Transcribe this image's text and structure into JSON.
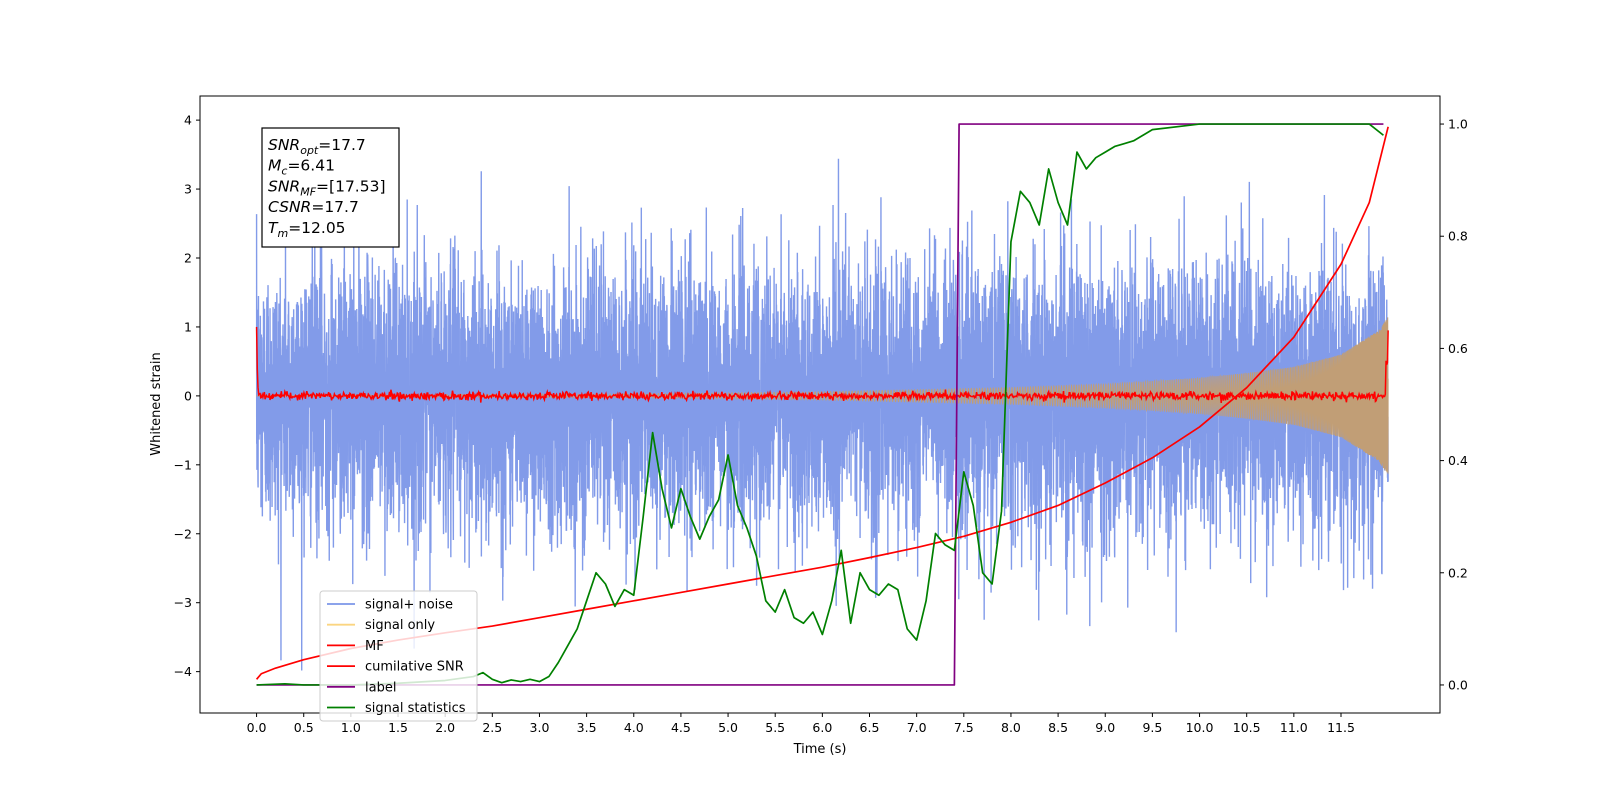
{
  "chart_data": {
    "type": "line",
    "xlabel": "Time (s)",
    "ylabel": "Whitened strain",
    "xlim": [
      -0.6,
      12.55
    ],
    "ylim_left": [
      -4.6,
      4.35
    ],
    "ylim_right": [
      -0.05,
      1.05
    ],
    "x_ticks": [
      "0.0",
      "0.5",
      "1.0",
      "1.5",
      "2.0",
      "2.5",
      "3.0",
      "3.5",
      "4.0",
      "4.5",
      "5.0",
      "5.5",
      "6.0",
      "6.5",
      "7.0",
      "7.5",
      "8.0",
      "8.5",
      "9.0",
      "9.5",
      "10.0",
      "10.5",
      "11.0",
      "11.5"
    ],
    "y_ticks_left": [
      "−4",
      "−3",
      "−2",
      "−1",
      "0",
      "1",
      "2",
      "3",
      "4"
    ],
    "y_ticks_right": [
      "0.0",
      "0.2",
      "0.4",
      "0.6",
      "0.8",
      "1.0"
    ],
    "annotation": [
      {
        "base": "SNR",
        "sub": "opt",
        "value": "=17.7"
      },
      {
        "base": "M",
        "sub": "c",
        "value": "=6.41"
      },
      {
        "base": "SNR",
        "sub": "MF",
        "value": "=[17.53]"
      },
      {
        "base": "CSNR",
        "sub": "",
        "value": "=17.7"
      },
      {
        "base": "T",
        "sub": "m",
        "value": "=12.05"
      }
    ],
    "legend": {
      "placement": "lower-left",
      "entries": [
        {
          "label": "signal+ noise",
          "color": "#7b96e8"
        },
        {
          "label": "signal only",
          "color": "#fbd581"
        },
        {
          "label": "MF",
          "color": "#ff0000"
        },
        {
          "label": "cumilative SNR",
          "color": "#ff0000"
        },
        {
          "label": "label",
          "color": "#800080"
        },
        {
          "label": "signal statistics",
          "color": "#008000"
        }
      ]
    },
    "series": [
      {
        "name": "signal+ noise",
        "axis": "left",
        "color": "#7b96e8",
        "kind": "noise",
        "sigma": 0.95,
        "t_start": 0.0,
        "t_end": 12.0
      },
      {
        "name": "signal only",
        "axis": "left",
        "color": "#c19e76",
        "kind": "chirp_envelope",
        "t_start": 0.0,
        "t_end": 12.0,
        "tc": 12.05,
        "envelope": {
          "t": [
            0.0,
            2.0,
            4.0,
            6.0,
            8.0,
            9.0,
            10.0,
            10.5,
            11.0,
            11.5,
            11.9,
            12.0
          ],
          "a": [
            0.0,
            0.02,
            0.03,
            0.06,
            0.12,
            0.17,
            0.26,
            0.33,
            0.42,
            0.6,
            0.95,
            1.15
          ]
        }
      },
      {
        "name": "MF",
        "axis": "left",
        "color": "#ff0000",
        "kind": "matched_filter",
        "t_start": 0.0,
        "t_end": 12.0,
        "start_value": 1.0,
        "end_value": 0.95,
        "jitter": 0.06
      },
      {
        "name": "cumilative SNR",
        "axis": "right",
        "color": "#ff0000",
        "x": [
          0.0,
          0.05,
          0.2,
          0.5,
          1.0,
          1.5,
          2.0,
          2.5,
          3.0,
          3.5,
          4.0,
          4.5,
          5.0,
          5.5,
          6.0,
          6.5,
          7.0,
          7.5,
          8.0,
          8.5,
          9.0,
          9.5,
          10.0,
          10.5,
          11.0,
          11.5,
          11.8,
          12.0
        ],
        "y": [
          0.01,
          0.02,
          0.03,
          0.045,
          0.065,
          0.08,
          0.093,
          0.105,
          0.12,
          0.135,
          0.15,
          0.165,
          0.18,
          0.195,
          0.21,
          0.227,
          0.245,
          0.265,
          0.29,
          0.32,
          0.36,
          0.405,
          0.46,
          0.53,
          0.62,
          0.75,
          0.86,
          0.995
        ]
      },
      {
        "name": "label",
        "axis": "right",
        "color": "#800080",
        "x": [
          0.0,
          7.4,
          7.45,
          11.95
        ],
        "y": [
          0.0,
          0.0,
          1.0,
          1.0
        ]
      },
      {
        "name": "signal statistics",
        "axis": "right",
        "color": "#008000",
        "x": [
          0.0,
          0.3,
          0.5,
          1.0,
          1.5,
          2.0,
          2.3,
          2.4,
          2.5,
          2.6,
          2.7,
          2.8,
          2.9,
          3.0,
          3.1,
          3.2,
          3.3,
          3.4,
          3.5,
          3.6,
          3.7,
          3.8,
          3.9,
          4.0,
          4.1,
          4.2,
          4.3,
          4.4,
          4.5,
          4.6,
          4.7,
          4.8,
          4.9,
          5.0,
          5.1,
          5.2,
          5.3,
          5.4,
          5.5,
          5.6,
          5.7,
          5.8,
          5.9,
          6.0,
          6.1,
          6.2,
          6.3,
          6.4,
          6.5,
          6.6,
          6.7,
          6.8,
          6.9,
          7.0,
          7.1,
          7.2,
          7.3,
          7.4,
          7.5,
          7.6,
          7.7,
          7.8,
          7.9,
          8.0,
          8.1,
          8.2,
          8.3,
          8.4,
          8.5,
          8.6,
          8.7,
          8.8,
          8.9,
          9.0,
          9.1,
          9.2,
          9.3,
          9.5,
          10.0,
          10.5,
          11.0,
          11.5,
          11.8,
          11.95
        ],
        "y": [
          0.0,
          0.002,
          0.0,
          0.0,
          0.003,
          0.008,
          0.015,
          0.022,
          0.01,
          0.004,
          0.009,
          0.006,
          0.01,
          0.006,
          0.015,
          0.04,
          0.07,
          0.1,
          0.15,
          0.2,
          0.18,
          0.14,
          0.17,
          0.16,
          0.3,
          0.45,
          0.35,
          0.28,
          0.35,
          0.3,
          0.26,
          0.3,
          0.33,
          0.41,
          0.32,
          0.28,
          0.23,
          0.15,
          0.13,
          0.17,
          0.12,
          0.11,
          0.13,
          0.09,
          0.15,
          0.24,
          0.11,
          0.2,
          0.17,
          0.16,
          0.18,
          0.17,
          0.1,
          0.08,
          0.15,
          0.27,
          0.25,
          0.24,
          0.38,
          0.32,
          0.2,
          0.18,
          0.31,
          0.79,
          0.88,
          0.86,
          0.82,
          0.92,
          0.86,
          0.82,
          0.95,
          0.92,
          0.94,
          0.95,
          0.96,
          0.965,
          0.97,
          0.99,
          1.0,
          1.0,
          1.0,
          1.0,
          1.0,
          0.98
        ]
      }
    ]
  }
}
